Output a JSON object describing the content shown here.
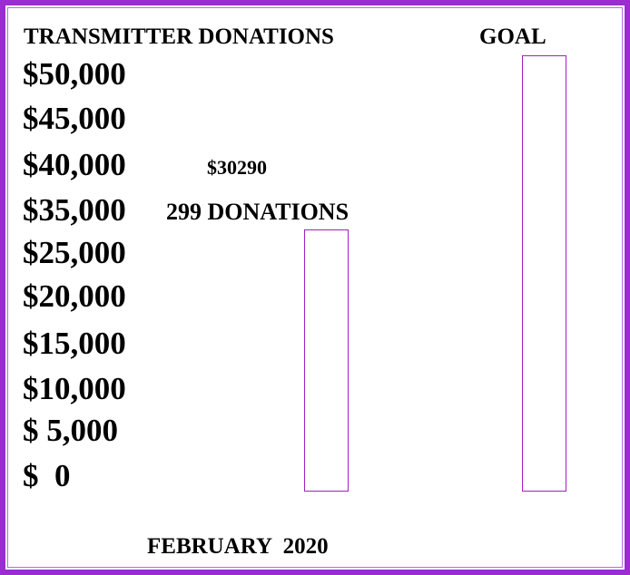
{
  "title": "TRANSMITTER DONATIONS",
  "goal_label": "GOAL",
  "scale_labels": [
    "$50,000",
    "$45,000",
    "$40,000",
    "$35,000",
    "$25,000",
    "$20,000",
    "$15,000",
    "$10,000",
    "$ 5,000",
    "$  0"
  ],
  "amount": "$30290",
  "donations": "299 DONATIONS",
  "footer": "FEBRUARY  2020"
}
